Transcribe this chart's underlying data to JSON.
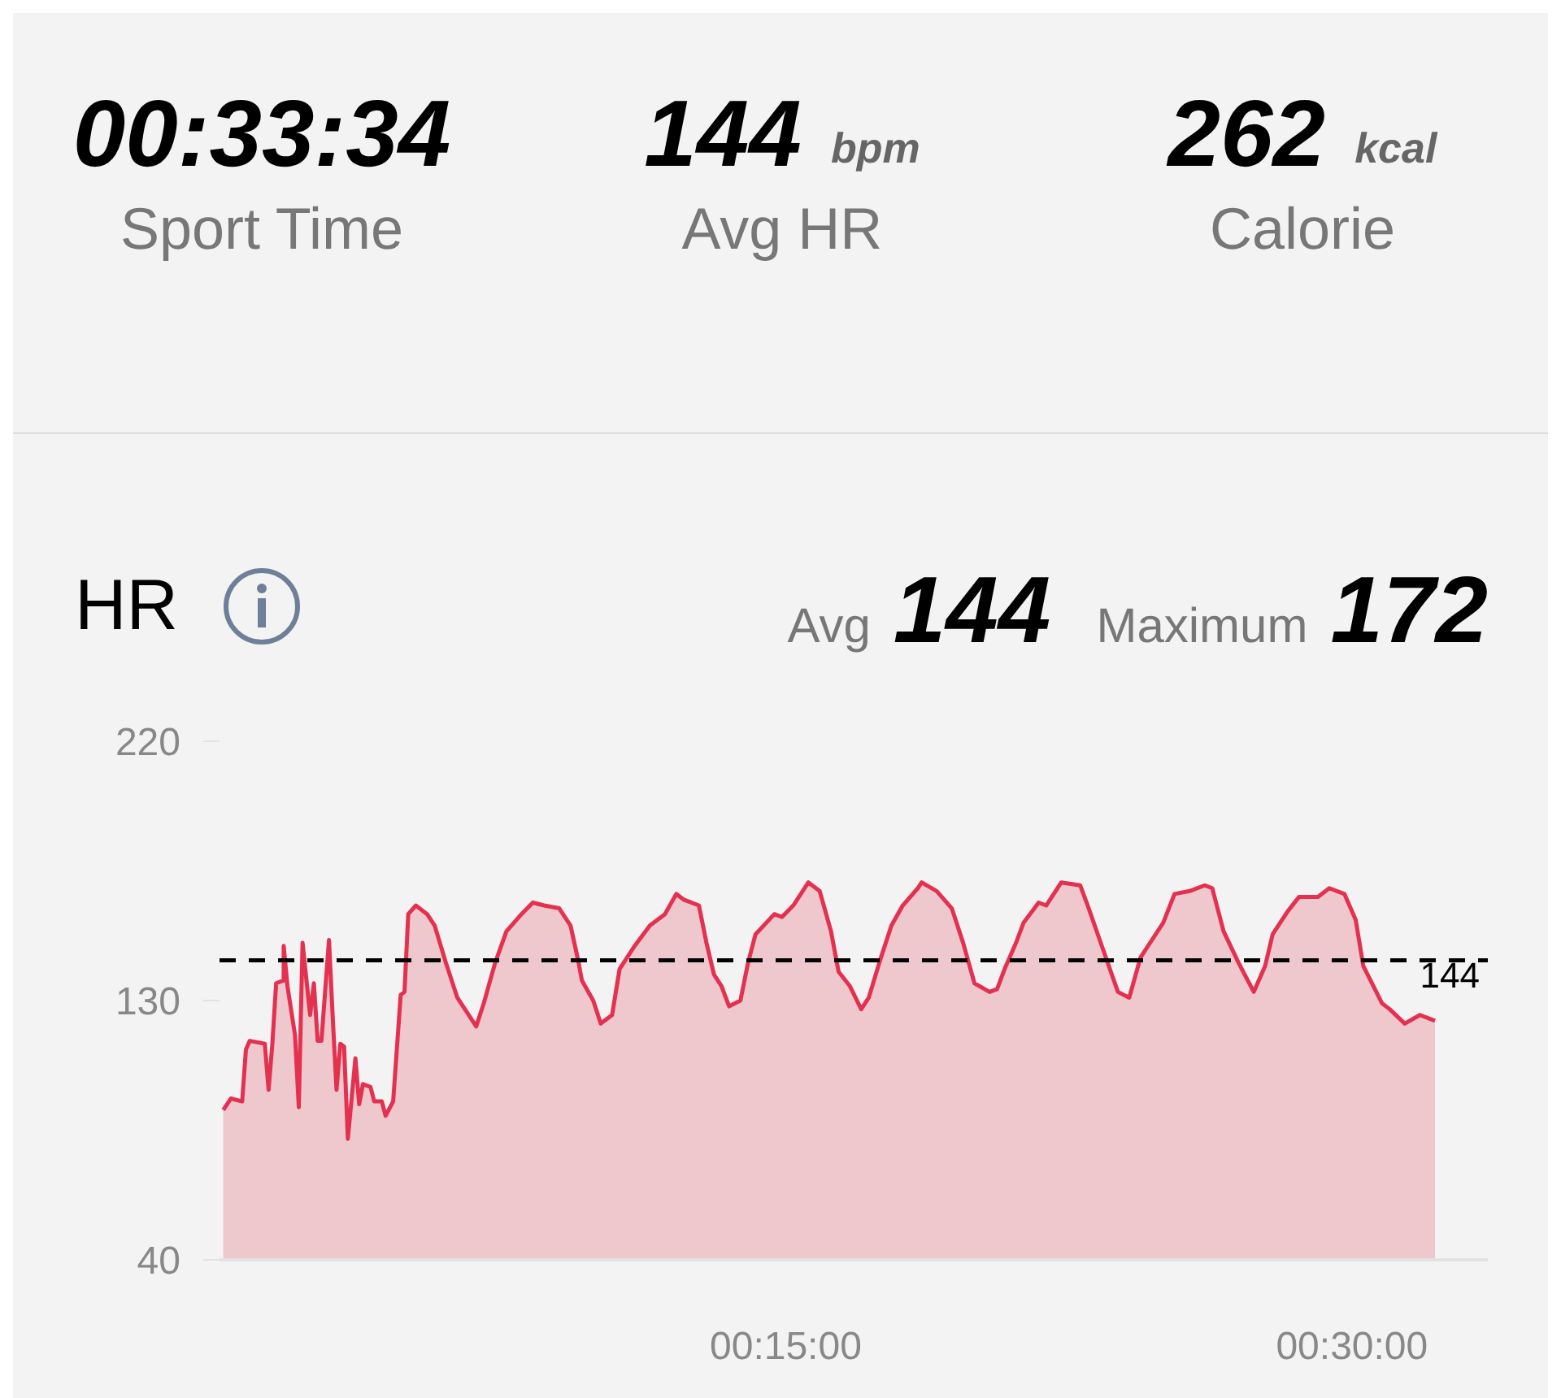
{
  "chart_data": {
    "type": "area",
    "title": "HR",
    "annotations": [
      "00:33:34",
      "Sport Time",
      "144",
      "bpm",
      "Avg HR",
      "262",
      "kcal",
      "Calorie",
      "Avg",
      "144",
      "Maximum",
      "172"
    ],
    "x": [
      0.1,
      0.3,
      0.6,
      0.7,
      0.8,
      1.2,
      1.3,
      1.4,
      1.5,
      1.7,
      1.7,
      1.8,
      2.0,
      2.1,
      2.2,
      2.4,
      2.5,
      2.6,
      2.7,
      2.9,
      3.0,
      3.1,
      3.2,
      3.3,
      3.4,
      3.6,
      3.7,
      3.8,
      4.0,
      4.1,
      4.3,
      4.4,
      4.6,
      4.8,
      4.9,
      5.0,
      5.2,
      5.5,
      5.7,
      6.0,
      6.3,
      6.6,
      6.8,
      7.0,
      7.3,
      7.6,
      8.0,
      8.3,
      8.6,
      9.0,
      9.3,
      9.5,
      9.6,
      9.9,
      10.1,
      10.4,
      10.6,
      11.0,
      11.4,
      11.8,
      12.1,
      12.3,
      12.7,
      12.9,
      13.1,
      13.3,
      13.5,
      13.8,
      14.0,
      14.2,
      14.7,
      14.9,
      15.2,
      15.6,
      15.9,
      16.2,
      16.4,
      16.7,
      17.0,
      17.2,
      17.5,
      17.8,
      18.1,
      18.5,
      18.6,
      19.0,
      19.4,
      19.7,
      20.0,
      20.4,
      20.6,
      20.8,
      21.1,
      21.3,
      21.7,
      21.9,
      22.3,
      22.8,
      23.0,
      23.4,
      23.8,
      24.1,
      24.4,
      25.0,
      25.3,
      25.7,
      26.1,
      26.3,
      26.6,
      27.0,
      27.4,
      27.7,
      27.9,
      28.3,
      28.6,
      29.1,
      29.4,
      29.8,
      30.1,
      30.3,
      30.8,
      31.0,
      31.4,
      31.8,
      32.2
    ],
    "series": [
      {
        "color": "#e3314f",
        "values": [
          92,
          96,
          95,
          113,
          116,
          115,
          99,
          115,
          136,
          137,
          149,
          135,
          118,
          93,
          150,
          125,
          136,
          116,
          116,
          151,
          124,
          99,
          115,
          114,
          82,
          110,
          94,
          101,
          100,
          95,
          95,
          90,
          95,
          132,
          133,
          160,
          163,
          160,
          156,
          143,
          131,
          125,
          121,
          129,
          143,
          154,
          160,
          164,
          163,
          162,
          156,
          144,
          137,
          130,
          122,
          125,
          141,
          149,
          156,
          160,
          167,
          165,
          163,
          150,
          139,
          135,
          128,
          130,
          143,
          153,
          160,
          159,
          163,
          171,
          168,
          154,
          140,
          135,
          127,
          131,
          144,
          156,
          163,
          169,
          171,
          168,
          162,
          150,
          136,
          133,
          134,
          141,
          150,
          157,
          164,
          163,
          171,
          170,
          163,
          148,
          133,
          131,
          145,
          157,
          167,
          168,
          170,
          169,
          154,
          143,
          133,
          142,
          153,
          161,
          166,
          166,
          169,
          167,
          158,
          142,
          129,
          127,
          122,
          125,
          123
        ]
      }
    ],
    "xlim": [
      0,
      33.6
    ],
    "xticks": [
      {
        "value": 15,
        "label": "00:15:00"
      },
      {
        "value": 30,
        "label": "00:30:00"
      }
    ],
    "ylim": [
      40,
      220
    ],
    "yticks": [
      40,
      130,
      220
    ],
    "ref_lines": [
      {
        "axis": "y",
        "value": 144,
        "label": "144",
        "color": "#000000",
        "line_style": "dashed"
      }
    ]
  }
}
